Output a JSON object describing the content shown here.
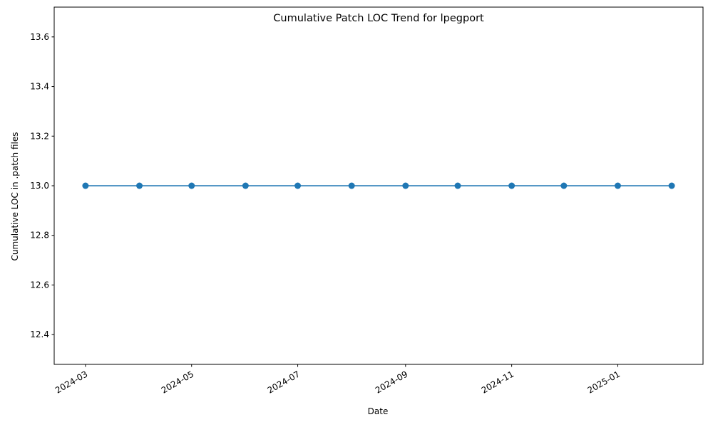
{
  "chart_data": {
    "type": "line",
    "title": "Cumulative Patch LOC Trend for lpegport",
    "xlabel": "Date",
    "ylabel": "Cumulative LOC in .patch files",
    "x": [
      "2024-03-01",
      "2024-04-01",
      "2024-05-01",
      "2024-06-01",
      "2024-07-01",
      "2024-08-01",
      "2024-09-01",
      "2024-10-01",
      "2024-11-01",
      "2024-12-01",
      "2025-01-01",
      "2025-02-01"
    ],
    "series": [
      {
        "values": [
          13,
          13,
          13,
          13,
          13,
          13,
          13,
          13,
          13,
          13,
          13,
          13
        ],
        "color": "#1f77b4",
        "marker": "circle"
      }
    ],
    "xticks": [
      "2024-03",
      "2024-05",
      "2024-07",
      "2024-09",
      "2024-11",
      "2025-01"
    ],
    "xtick_values": [
      "2024-03-01",
      "2024-05-01",
      "2024-07-01",
      "2024-09-01",
      "2024-11-01",
      "2025-01-01"
    ],
    "yticks": [
      "12.4",
      "12.6",
      "12.8",
      "13.0",
      "13.2",
      "13.4",
      "13.6"
    ],
    "ytick_values": [
      12.4,
      12.6,
      12.8,
      13.0,
      13.2,
      13.4,
      13.6
    ],
    "xlim": [
      "2024-02-12",
      "2025-02-19"
    ],
    "ylim": [
      12.28,
      13.72
    ],
    "grid": false,
    "legend": "none"
  }
}
